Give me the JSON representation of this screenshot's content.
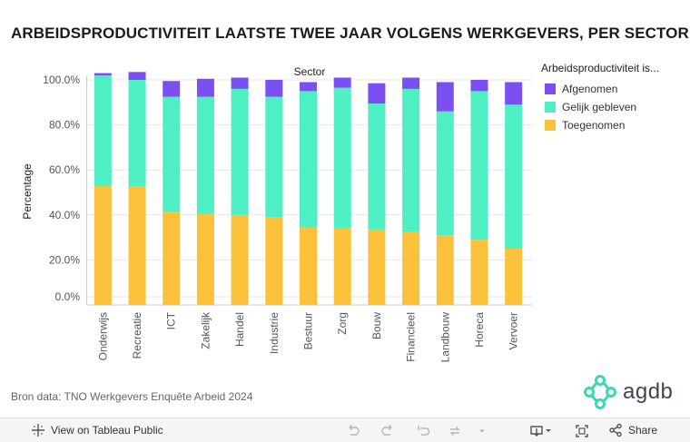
{
  "title": "ARBEIDSPRODUCTIVITEIT LAATSTE TWEE JAAR VOLGENS WERKGEVERS, PER SECTOR",
  "source": "Bron data: TNO Werkgevers Enquête Arbeid 2024",
  "logo": {
    "text": "agdb"
  },
  "colors": {
    "afgenomen": "#7b4ff2",
    "gelijk": "#4eefc2",
    "toegenomen": "#fcc13b",
    "grid": "#e6e6e6"
  },
  "chart_data": {
    "type": "bar",
    "stacked": true,
    "title": "Sector",
    "xlabel": "",
    "ylabel": "Percentage",
    "ylim": [
      0,
      100
    ],
    "yticks": [
      "0.0%",
      "20.0%",
      "40.0%",
      "60.0%",
      "80.0%",
      "100.0%"
    ],
    "categories": [
      "Onderwijs",
      "Recreatie",
      "ICT",
      "Zakelijk",
      "Handel",
      "Industrie",
      "Bestuur",
      "Zorg",
      "Bouw",
      "Financieel",
      "Landbouw",
      "Horeca",
      "Vervoer"
    ],
    "legend_title": "Arbeidsproductiviteit is...",
    "series": [
      {
        "name": "Toegenomen",
        "key": "toegenomen",
        "values": [
          53,
          52.5,
          41.5,
          40.5,
          40,
          39,
          34.5,
          34,
          33.5,
          32.5,
          31,
          29,
          25
        ]
      },
      {
        "name": "Gelijk gebleven",
        "key": "gelijk",
        "values": [
          49,
          47.5,
          51,
          52,
          56,
          53.5,
          60.5,
          62.5,
          56,
          63.5,
          55,
          66,
          64
        ]
      },
      {
        "name": "Afgenomen",
        "key": "afgenomen",
        "values": [
          1,
          3.5,
          7,
          8,
          5,
          7.5,
          4,
          4.5,
          9,
          5,
          13,
          5,
          10
        ]
      }
    ]
  },
  "legend": {
    "title": "Arbeidsproductiviteit is...",
    "items": [
      {
        "label": "Afgenomen",
        "color": "#7b4ff2"
      },
      {
        "label": "Gelijk gebleven",
        "color": "#4eefc2"
      },
      {
        "label": "Toegenomen",
        "color": "#fcc13b"
      }
    ]
  },
  "toolbar": {
    "view_label": "View on Tableau Public",
    "share_label": "Share"
  }
}
